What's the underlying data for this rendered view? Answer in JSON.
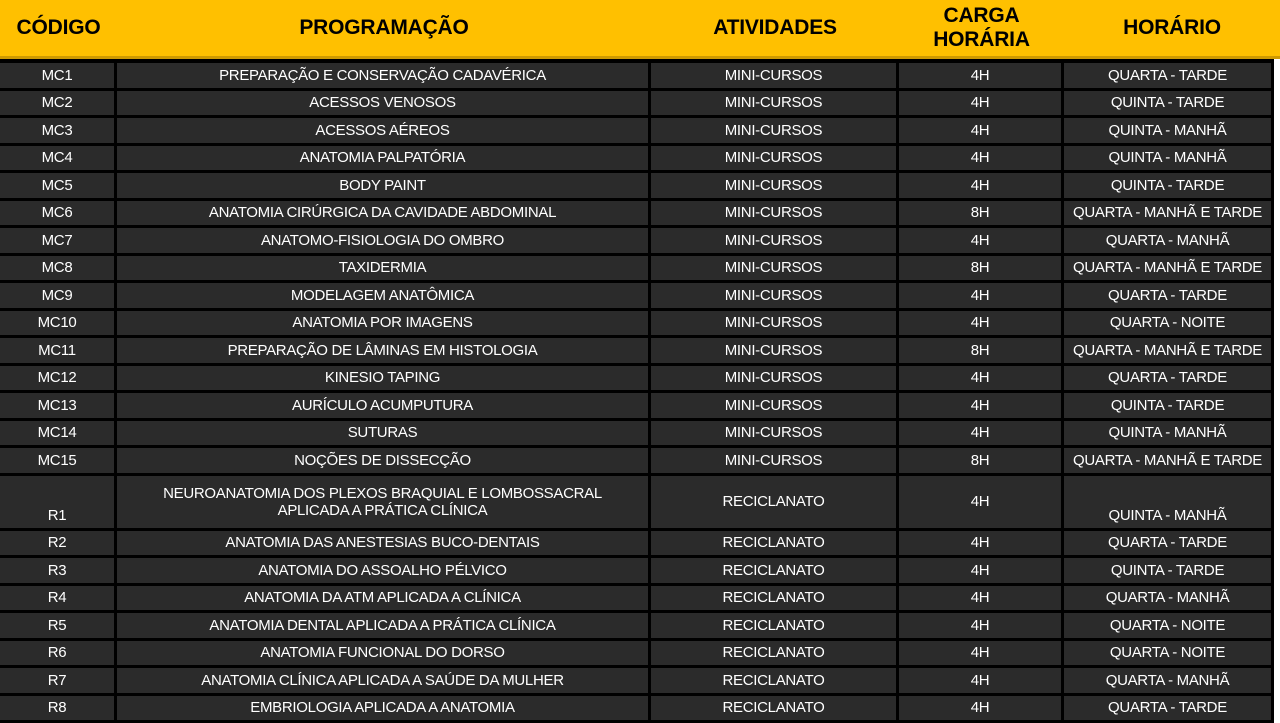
{
  "colors": {
    "header_bg": "#FFC000",
    "header_edge": "#CF9A00",
    "row_bg": "#2B2B2B",
    "grid_lines": "#000000",
    "header_text": "#000000",
    "row_text": "#FFFFFF"
  },
  "header": {
    "codigo": "CÓDIGO",
    "programacao": "PROGRAMAÇÃO",
    "atividades": "ATIVIDADES",
    "carga_horaria": "CARGA\nHORÁRIA",
    "horario": "HORÁRIO"
  },
  "rows": [
    {
      "code": "MC1",
      "program": "PREPARAÇÃO E CONSERVAÇÃO CADAVÉRICA",
      "activity": "MINI-CURSOS",
      "hours": "4H",
      "schedule": "QUARTA - TARDE"
    },
    {
      "code": "MC2",
      "program": "ACESSOS VENOSOS",
      "activity": "MINI-CURSOS",
      "hours": "4H",
      "schedule": "QUINTA - TARDE"
    },
    {
      "code": "MC3",
      "program": "ACESSOS AÉREOS",
      "activity": "MINI-CURSOS",
      "hours": "4H",
      "schedule": "QUINTA - MANHÃ"
    },
    {
      "code": "MC4",
      "program": "ANATOMIA PALPATÓRIA",
      "activity": "MINI-CURSOS",
      "hours": "4H",
      "schedule": "QUINTA - MANHÃ"
    },
    {
      "code": "MC5",
      "program": "BODY PAINT",
      "activity": "MINI-CURSOS",
      "hours": "4H",
      "schedule": "QUINTA - TARDE"
    },
    {
      "code": "MC6",
      "program": "ANATOMIA CIRÚRGICA DA CAVIDADE ABDOMINAL",
      "activity": "MINI-CURSOS",
      "hours": "8H",
      "schedule": "QUARTA - MANHÃ E TARDE"
    },
    {
      "code": "MC7",
      "program": "ANATOMO-FISIOLOGIA DO OMBRO",
      "activity": "MINI-CURSOS",
      "hours": "4H",
      "schedule": "QUARTA - MANHÃ"
    },
    {
      "code": "MC8",
      "program": "TAXIDERMIA",
      "activity": "MINI-CURSOS",
      "hours": "8H",
      "schedule": "QUARTA - MANHÃ E TARDE"
    },
    {
      "code": "MC9",
      "program": "MODELAGEM ANATÔMICA",
      "activity": "MINI-CURSOS",
      "hours": "4H",
      "schedule": "QUARTA - TARDE"
    },
    {
      "code": "MC10",
      "program": "ANATOMIA POR IMAGENS",
      "activity": "MINI-CURSOS",
      "hours": "4H",
      "schedule": "QUARTA - NOITE"
    },
    {
      "code": "MC11",
      "program": "PREPARAÇÃO DE LÂMINAS EM HISTOLOGIA",
      "activity": "MINI-CURSOS",
      "hours": "8H",
      "schedule": "QUARTA - MANHÃ E TARDE"
    },
    {
      "code": "MC12",
      "program": "KINESIO TAPING",
      "activity": "MINI-CURSOS",
      "hours": "4H",
      "schedule": "QUARTA - TARDE"
    },
    {
      "code": "MC13",
      "program": "AURÍCULO ACUMPUTURA",
      "activity": "MINI-CURSOS",
      "hours": "4H",
      "schedule": "QUINTA - TARDE"
    },
    {
      "code": "MC14",
      "program": "SUTURAS",
      "activity": "MINI-CURSOS",
      "hours": "4H",
      "schedule": "QUINTA - MANHÃ"
    },
    {
      "code": "MC15",
      "program": "NOÇÕES DE DISSECÇÃO",
      "activity": "MINI-CURSOS",
      "hours": "8H",
      "schedule": "QUARTA - MANHÃ E TARDE"
    },
    {
      "code": "R1",
      "program": "NEUROANATOMIA DOS PLEXOS BRAQUIAL E LOMBOSSACRAL\nAPLICADA A PRÁTICA CLÍNICA",
      "activity": "RECICLANATO",
      "hours": "4H",
      "schedule": "QUINTA - MANHÃ",
      "tall": true
    },
    {
      "code": "R2",
      "program": "ANATOMIA DAS ANESTESIAS BUCO-DENTAIS",
      "activity": "RECICLANATO",
      "hours": "4H",
      "schedule": "QUARTA - TARDE"
    },
    {
      "code": "R3",
      "program": "ANATOMIA DO ASSOALHO PÉLVICO",
      "activity": "RECICLANATO",
      "hours": "4H",
      "schedule": "QUINTA - TARDE"
    },
    {
      "code": "R4",
      "program": "ANATOMIA DA ATM APLICADA A CLÍNICA",
      "activity": "RECICLANATO",
      "hours": "4H",
      "schedule": "QUARTA - MANHÃ"
    },
    {
      "code": "R5",
      "program": "ANATOMIA DENTAL APLICADA A PRÁTICA CLÍNICA",
      "activity": "RECICLANATO",
      "hours": "4H",
      "schedule": "QUARTA - NOITE"
    },
    {
      "code": "R6",
      "program": "ANATOMIA FUNCIONAL DO DORSO",
      "activity": "RECICLANATO",
      "hours": "4H",
      "schedule": "QUARTA - NOITE"
    },
    {
      "code": "R7",
      "program": "ANATOMIA CLÍNICA APLICADA A SAÚDE DA MULHER",
      "activity": "RECICLANATO",
      "hours": "4H",
      "schedule": "QUARTA - MANHÃ"
    },
    {
      "code": "R8",
      "program": "EMBRIOLOGIA APLICADA A ANATOMIA",
      "activity": "RECICLANATO",
      "hours": "4H",
      "schedule": "QUARTA - TARDE"
    }
  ]
}
